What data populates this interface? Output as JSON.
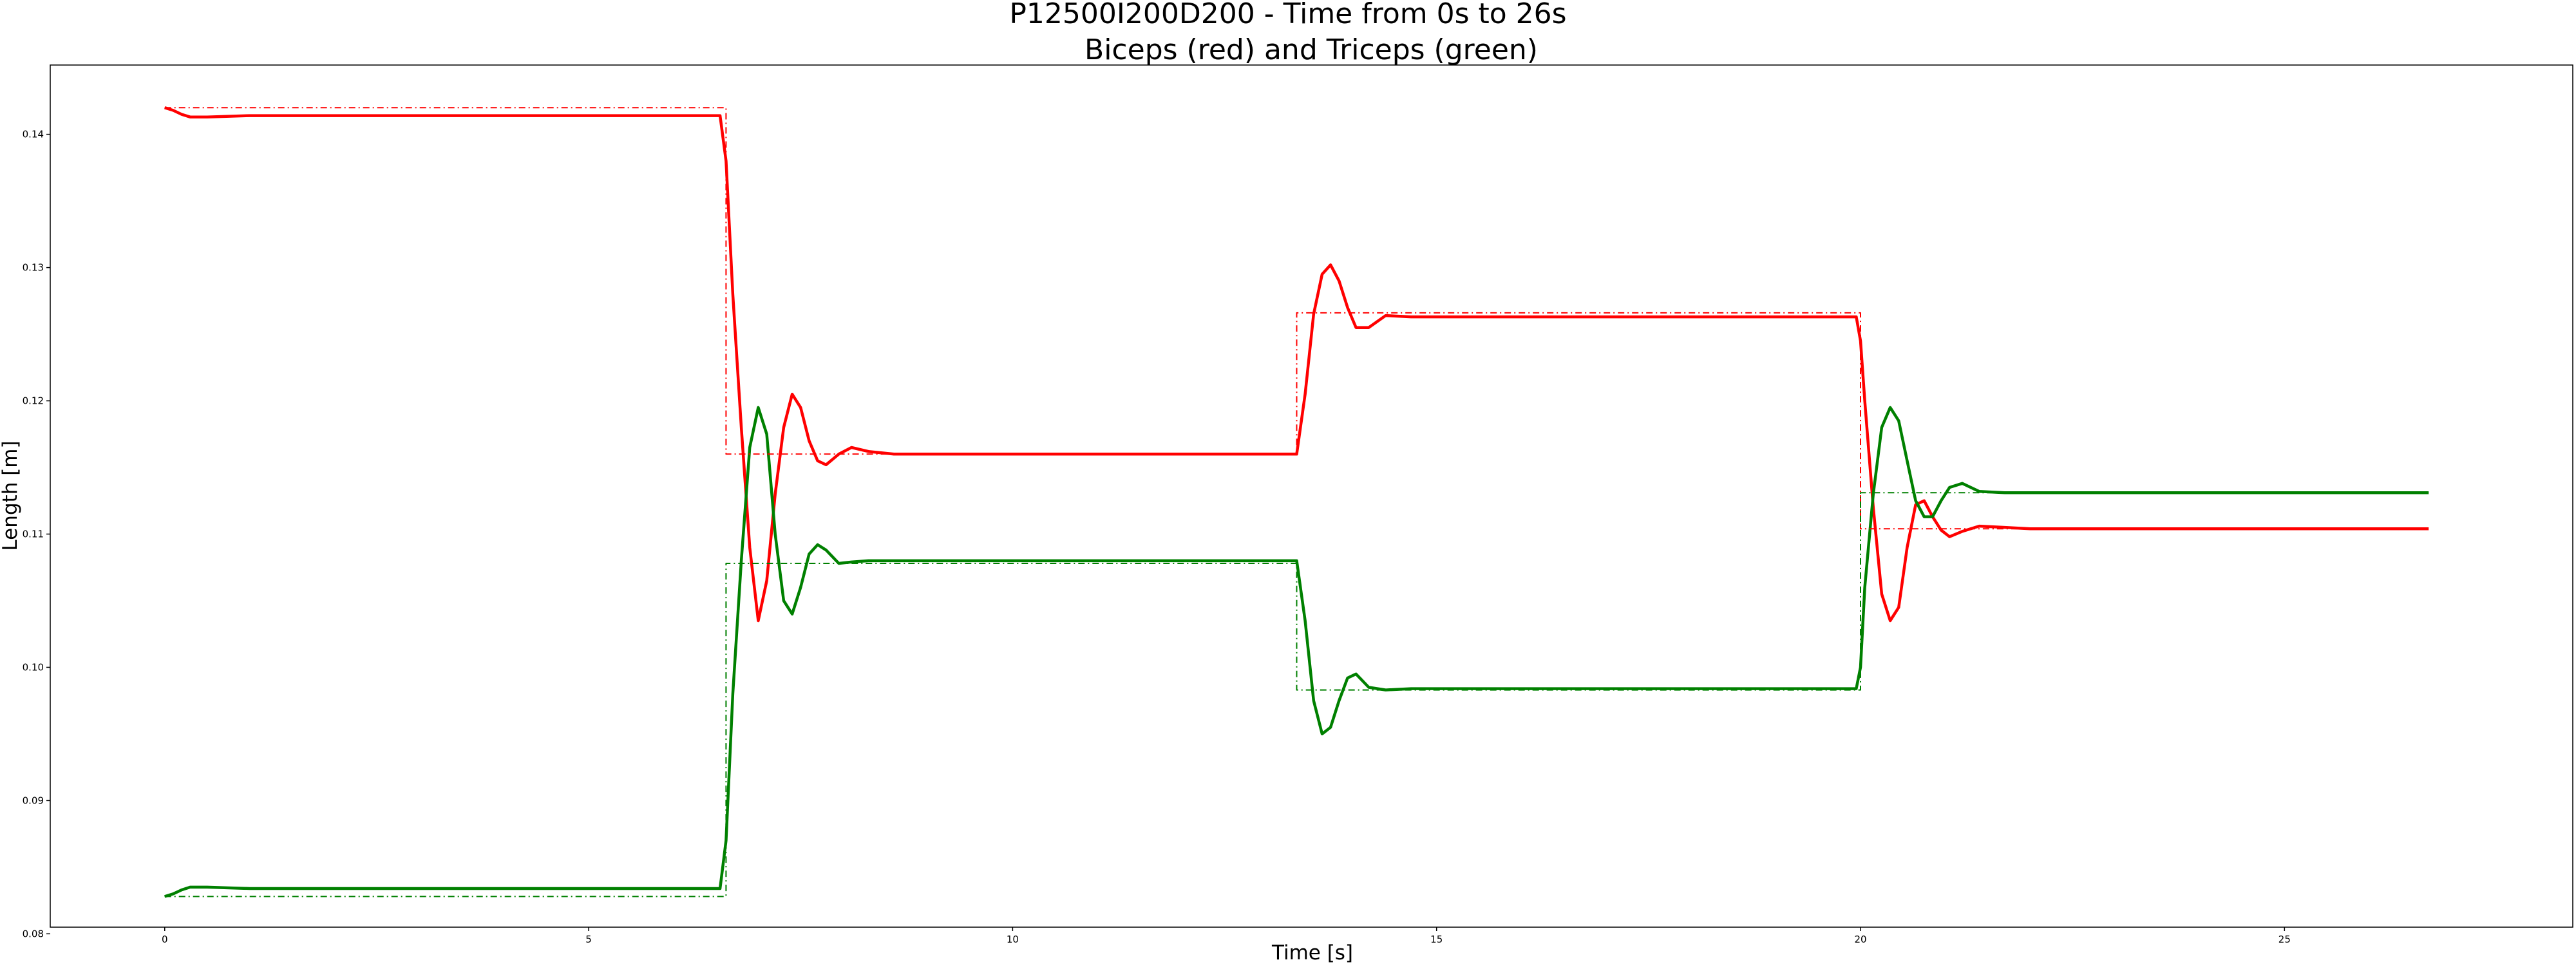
{
  "chart_data": {
    "type": "line",
    "title": "P12500I200D200 - Time from 0s to 26s",
    "subtitle": "Biceps (red) and Triceps (green)",
    "xlabel": "Time [s]",
    "ylabel": "Length [m]",
    "xlim": [
      -1.35,
      28.4
    ],
    "ylim": [
      0.0805,
      0.1452
    ],
    "xticks": [
      0,
      5,
      10,
      15,
      20,
      25
    ],
    "yticks": [
      0.08,
      0.09,
      0.1,
      0.11,
      0.12,
      0.13,
      0.14
    ],
    "xtick_labels": [
      "0",
      "5",
      "10",
      "15",
      "20",
      "25"
    ],
    "ytick_labels": [
      "0.08",
      "0.09",
      "0.10",
      "0.11",
      "0.12",
      "0.13",
      "0.14"
    ],
    "grid": false,
    "legend": "none",
    "series": [
      {
        "color": "#ff0000",
        "style": "solid",
        "x": [
          0,
          0.1,
          0.2,
          0.3,
          0.5,
          1.0,
          6.55,
          6.62,
          6.7,
          6.8,
          6.9,
          7.0,
          7.1,
          7.2,
          7.3,
          7.4,
          7.5,
          7.6,
          7.7,
          7.8,
          7.95,
          8.1,
          8.3,
          8.6,
          9.0,
          13.35,
          13.45,
          13.55,
          13.65,
          13.75,
          13.85,
          13.95,
          14.05,
          14.2,
          14.4,
          14.7,
          15.0,
          19.95,
          20.0,
          20.05,
          20.15,
          20.25,
          20.35,
          20.45,
          20.55,
          20.65,
          20.75,
          20.85,
          20.95,
          21.05,
          21.2,
          21.4,
          21.7,
          22.0,
          26.7
        ],
        "y": [
          0.142,
          0.1418,
          0.1415,
          0.1413,
          0.1413,
          0.1414,
          0.1414,
          0.138,
          0.128,
          0.118,
          0.109,
          0.1035,
          0.1065,
          0.113,
          0.118,
          0.1205,
          0.1195,
          0.117,
          0.1155,
          0.1152,
          0.116,
          0.1165,
          0.1162,
          0.116,
          0.116,
          0.116,
          0.1205,
          0.1265,
          0.1295,
          0.1302,
          0.129,
          0.127,
          0.1255,
          0.1255,
          0.1264,
          0.1263,
          0.1263,
          0.1263,
          0.1245,
          0.12,
          0.112,
          0.1055,
          0.1035,
          0.1045,
          0.109,
          0.1122,
          0.1125,
          0.1113,
          0.1103,
          0.1098,
          0.1102,
          0.1106,
          0.1105,
          0.1104,
          0.1104
        ]
      },
      {
        "color": "#008000",
        "style": "solid",
        "x": [
          0,
          0.1,
          0.2,
          0.3,
          0.5,
          1.0,
          6.55,
          6.62,
          6.7,
          6.8,
          6.9,
          7.0,
          7.1,
          7.2,
          7.3,
          7.4,
          7.5,
          7.6,
          7.7,
          7.8,
          7.95,
          8.1,
          8.3,
          8.6,
          9.0,
          13.35,
          13.45,
          13.55,
          13.65,
          13.75,
          13.85,
          13.95,
          14.05,
          14.2,
          14.4,
          14.7,
          15.0,
          19.95,
          20.0,
          20.05,
          20.15,
          20.25,
          20.35,
          20.45,
          20.55,
          20.65,
          20.75,
          20.85,
          20.95,
          21.05,
          21.2,
          21.4,
          21.7,
          22.0,
          26.7
        ],
        "y": [
          0.0828,
          0.083,
          0.0833,
          0.0835,
          0.0835,
          0.0834,
          0.0834,
          0.087,
          0.098,
          0.108,
          0.1165,
          0.1195,
          0.1175,
          0.11,
          0.105,
          0.104,
          0.106,
          0.1085,
          0.1092,
          0.1088,
          0.1078,
          0.1079,
          0.108,
          0.108,
          0.108,
          0.108,
          0.1035,
          0.0975,
          0.095,
          0.0955,
          0.0975,
          0.0992,
          0.0995,
          0.0985,
          0.0983,
          0.0984,
          0.0984,
          0.0984,
          0.1,
          0.106,
          0.113,
          0.118,
          0.1195,
          0.1185,
          0.1155,
          0.1125,
          0.1113,
          0.1113,
          0.1125,
          0.1135,
          0.1138,
          0.1132,
          0.1131,
          0.1131,
          0.1131
        ]
      },
      {
        "color": "#ff0000",
        "style": "dashdot",
        "x": [
          0,
          6.62,
          6.62,
          13.35,
          13.35,
          20.0,
          20.0,
          26.7
        ],
        "y": [
          0.142,
          0.142,
          0.116,
          0.116,
          0.1266,
          0.1266,
          0.1104,
          0.1104
        ]
      },
      {
        "color": "#008000",
        "style": "dashdot",
        "x": [
          0,
          6.62,
          6.62,
          13.35,
          13.35,
          20.0,
          20.0,
          26.7
        ],
        "y": [
          0.0828,
          0.0828,
          0.1078,
          0.1078,
          0.0983,
          0.0983,
          0.1131,
          0.1131
        ]
      }
    ]
  }
}
